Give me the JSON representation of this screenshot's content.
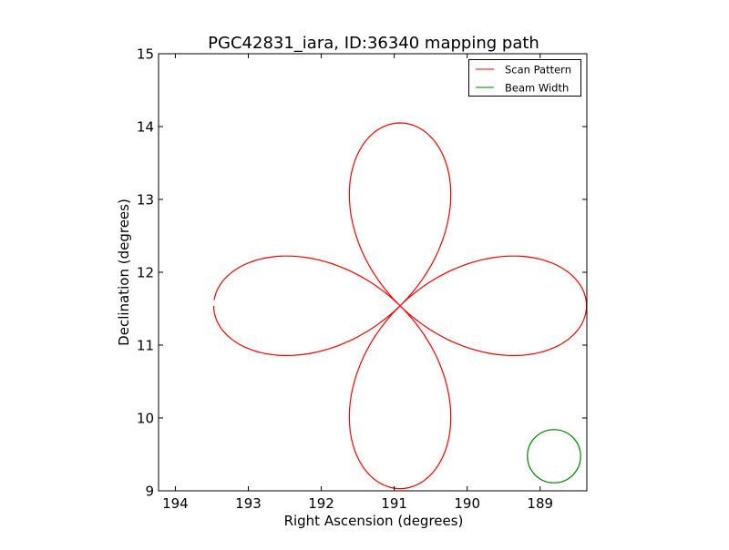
{
  "chart_data": {
    "type": "line",
    "title": "PGC42831_iara, ID:36340 mapping path",
    "xlabel": "Right Ascension (degrees)",
    "ylabel": "Declination (degrees)",
    "xlim": [
      194.23,
      188.36
    ],
    "ylim": [
      9,
      15
    ],
    "x_ticks": [
      194,
      193,
      192,
      191,
      190,
      189
    ],
    "y_ticks": [
      9,
      10,
      11,
      12,
      13,
      14,
      15
    ],
    "x_tick_labels": [
      "194",
      "193",
      "192",
      "191",
      "190",
      "189"
    ],
    "y_tick_labels": [
      "9",
      "10",
      "11",
      "12",
      "13",
      "14",
      "15"
    ],
    "grid": false,
    "legend": {
      "placement": "top-right",
      "entries": [
        "Scan Pattern",
        "Beam Width"
      ]
    },
    "series": [
      {
        "name": "Scan Pattern",
        "color": "#ff0000",
        "shape": "four-petal rose r = cos(2θ)",
        "center": [
          190.92,
          11.54
        ],
        "amplitude_ra": 2.555,
        "amplitude_dec": 2.51,
        "start": [
          193.48,
          11.55
        ]
      },
      {
        "name": "Beam Width",
        "color": "#008000",
        "shape": "circle",
        "center": [
          188.81,
          9.475
        ],
        "radius_deg": 0.365
      }
    ]
  }
}
